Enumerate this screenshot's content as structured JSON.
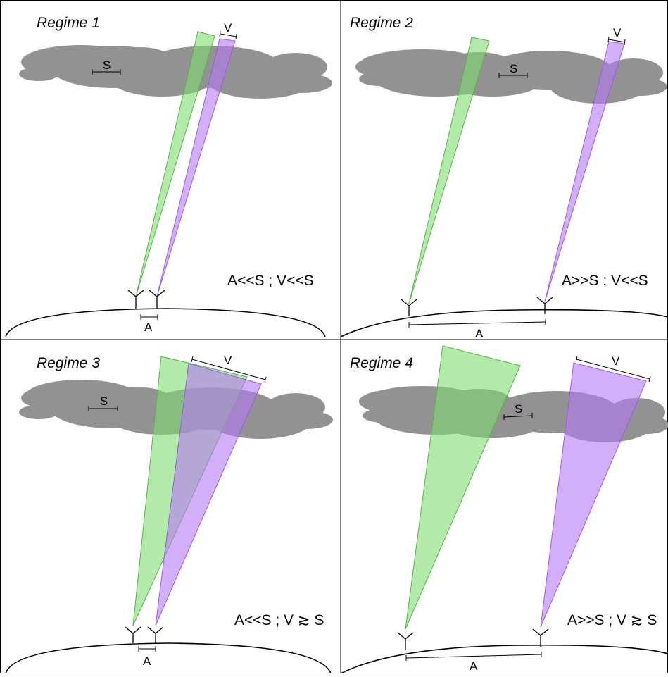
{
  "colors": {
    "cloud": "#929292",
    "beam_green": "#7fdc6f",
    "beam_purple": "#b57af5",
    "border": "#000000",
    "earth": "#000000"
  },
  "panels": [
    {
      "title": "Regime 1",
      "condition": "A<<S ; V<<S",
      "label_s": "S",
      "label_v": "V",
      "label_a": "A"
    },
    {
      "title": "Regime 2",
      "condition": "A>>S ; V<<S",
      "label_s": "S",
      "label_v": "V",
      "label_a": "A"
    },
    {
      "title": "Regime 3",
      "condition": "A<<S ; V ≳ S",
      "label_s": "S",
      "label_v": "V",
      "label_a": "A"
    },
    {
      "title": "Regime 4",
      "condition": "A>>S ; V ≳ S",
      "label_s": "S",
      "label_v": "V",
      "label_a": "A"
    }
  ]
}
